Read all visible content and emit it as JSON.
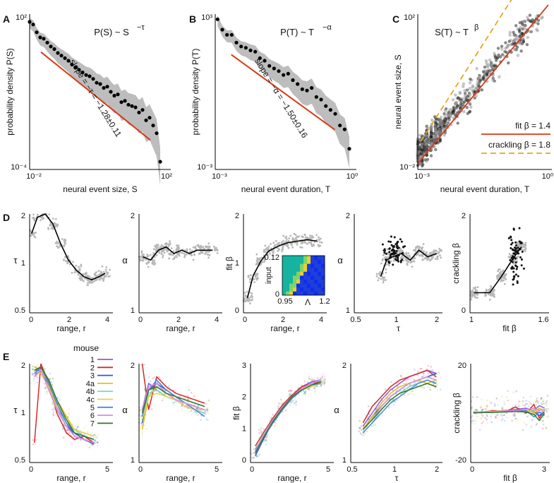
{
  "panel_letters": [
    "A",
    "B",
    "C",
    "D",
    "E"
  ],
  "legend": {
    "title": "mouse",
    "entries": [
      {
        "label": "1",
        "color": "#8b5cd6"
      },
      {
        "label": "2",
        "color": "#d62828"
      },
      {
        "label": "3",
        "color": "#3358c9"
      },
      {
        "label": "4a",
        "color": "#e0c21f"
      },
      {
        "label": "4b",
        "color": "#7ad7d0"
      },
      {
        "label": "4c",
        "color": "#e6d04a"
      },
      {
        "label": "5",
        "color": "#4a8ad6"
      },
      {
        "label": "6",
        "color": "#e08ae0"
      },
      {
        "label": "7",
        "color": "#2d7a2d"
      }
    ]
  },
  "chart_data": [
    {
      "panel": "A",
      "type": "scatter",
      "title": "P(S) ~ S",
      "title_exponent": "−τ",
      "xlabel": "neural event size, S",
      "ylabel": "probability density P(S)",
      "xticks": [
        "10⁻²",
        "10²"
      ],
      "yticks": [
        "10²",
        "10⁻⁴"
      ],
      "xlim_log10": [
        -2,
        2
      ],
      "ylim_log10": [
        -4,
        2
      ],
      "fit_annotation": "slope = −τ = −1.28±0.11",
      "x_log10": [
        -2.0,
        -1.9,
        -1.8,
        -1.7,
        -1.6,
        -1.5,
        -1.4,
        -1.3,
        -1.2,
        -1.1,
        -1.0,
        -0.9,
        -0.8,
        -0.7,
        -0.6,
        -0.5,
        -0.4,
        -0.3,
        -0.2,
        -0.1,
        0.0,
        0.1,
        0.2,
        0.3,
        0.4,
        0.5,
        0.6,
        0.7,
        0.8,
        0.9,
        1.0,
        1.1,
        1.2,
        1.3,
        1.4,
        1.5,
        1.6,
        1.7
      ],
      "y_log10": [
        1.7,
        1.6,
        1.3,
        1.1,
        1.05,
        0.9,
        0.75,
        0.65,
        0.5,
        0.4,
        0.3,
        0.2,
        0.05,
        -0.05,
        -0.15,
        -0.25,
        -0.35,
        -0.4,
        -0.5,
        -0.65,
        -0.7,
        -0.85,
        -0.8,
        -1.0,
        -1.15,
        -1.1,
        -1.4,
        -1.35,
        -1.5,
        -1.55,
        -1.6,
        -1.8,
        -1.7,
        -2.1,
        -2.0,
        -2.3,
        -2.6,
        -3.7
      ]
    },
    {
      "panel": "B",
      "type": "scatter",
      "title": "P(T) ~ T",
      "title_exponent": "−α",
      "xlabel": "neural event duration, T",
      "ylabel": "probability density P(T)",
      "xticks": [
        "10⁻³",
        "10⁰"
      ],
      "yticks": [
        "10³",
        "10⁻³"
      ],
      "xlim_log10": [
        -3,
        0
      ],
      "ylim_log10": [
        -3,
        3
      ],
      "fit_annotation": "slope = −α = −1.50±0.16",
      "x_log10": [
        -2.95,
        -2.85,
        -2.75,
        -2.65,
        -2.55,
        -2.45,
        -2.35,
        -2.25,
        -2.15,
        -2.05,
        -1.95,
        -1.85,
        -1.75,
        -1.65,
        -1.55,
        -1.45,
        -1.35,
        -1.25,
        -1.15,
        -1.05,
        -0.95,
        -0.85,
        -0.75,
        -0.65,
        -0.55,
        -0.45,
        -0.35,
        -0.25,
        -0.15
      ],
      "y_log10": [
        2.8,
        2.4,
        2.2,
        2.2,
        1.9,
        1.75,
        1.7,
        1.6,
        1.55,
        1.3,
        1.2,
        1.0,
        0.9,
        0.8,
        0.65,
        0.7,
        0.45,
        0.3,
        0.1,
        0.05,
        0.15,
        -0.2,
        -0.3,
        -0.55,
        -0.7,
        -0.85,
        -1.3,
        -1.45,
        -2.2
      ]
    },
    {
      "panel": "C",
      "type": "scatter",
      "title": "S(T) ~ T",
      "title_exponent": "β",
      "xlabel": "neural event duration, T",
      "ylabel": "neural event size, S",
      "xticks": [
        "10⁻³",
        "10⁰"
      ],
      "yticks": [
        "10²",
        "10⁻²"
      ],
      "xlim_log10": [
        -3,
        0
      ],
      "ylim_log10": [
        -2,
        2
      ],
      "lines": [
        {
          "name": "fit β = 1.4",
          "slope": 1.4,
          "color": "#d83a16",
          "dash": false
        },
        {
          "name": "crackling β = 1.8",
          "slope": 1.8,
          "color": "#e8a51c",
          "dash": true
        }
      ]
    },
    {
      "panel": "D1",
      "type": "line",
      "ylabel": "τ",
      "xlabel": "range, r",
      "xticks": [
        "0",
        "2",
        "4"
      ],
      "yticks": [
        "2",
        "1",
        "0.5"
      ],
      "xlim": [
        0,
        4.3
      ],
      "ylim": [
        0.5,
        2
      ],
      "x": [
        0.1,
        0.4,
        0.8,
        1.2,
        1.6,
        2.0,
        2.4,
        2.8,
        3.2,
        3.6,
        3.9
      ],
      "y": [
        1.7,
        1.95,
        2.0,
        1.85,
        1.55,
        1.3,
        1.15,
        1.05,
        1.0,
        1.05,
        1.1
      ]
    },
    {
      "panel": "D2",
      "type": "line",
      "ylabel": "α",
      "xlabel": "range, r",
      "xticks": [
        "0",
        "2",
        "4"
      ],
      "yticks": [
        "2",
        "1"
      ],
      "xlim": [
        0,
        4.3
      ],
      "ylim": [
        0.5,
        2
      ],
      "x": [
        0.2,
        0.6,
        1.0,
        1.4,
        1.8,
        2.2,
        2.6,
        3.0,
        3.4,
        3.8
      ],
      "y": [
        1.35,
        1.3,
        1.45,
        1.5,
        1.4,
        1.45,
        1.4,
        1.45,
        1.45,
        1.45
      ]
    },
    {
      "panel": "D3",
      "type": "line",
      "ylabel": "fit β",
      "xlabel": "range, r",
      "xticks": [
        "0",
        "2",
        "4"
      ],
      "yticks": [
        "2",
        "1",
        "0"
      ],
      "xlim": [
        0,
        4.3
      ],
      "ylim": [
        0,
        2
      ],
      "x": [
        0.2,
        0.5,
        0.9,
        1.3,
        1.8,
        2.3,
        2.8,
        3.3,
        3.8
      ],
      "y": [
        0.3,
        0.75,
        1.05,
        1.25,
        1.35,
        1.42,
        1.45,
        1.48,
        1.45
      ],
      "inset": {
        "ylabel": "input",
        "xlabel": "Λ",
        "xticks": [
          "0.95",
          "1.2"
        ],
        "yticks": [
          "0.12",
          "0"
        ]
      }
    },
    {
      "panel": "D4",
      "type": "line",
      "ylabel": "α",
      "xlabel": "τ",
      "xticks": [
        "0.5",
        "1",
        "2"
      ],
      "yticks": [
        "2",
        "1"
      ],
      "xlim": [
        0.5,
        2
      ],
      "ylim": [
        0.5,
        2
      ],
      "x": [
        0.95,
        1.05,
        1.15,
        1.3,
        1.45,
        1.6,
        1.75,
        1.9
      ],
      "y": [
        1.05,
        1.3,
        1.35,
        1.4,
        1.3,
        1.45,
        1.35,
        1.4
      ]
    },
    {
      "panel": "D5",
      "type": "line",
      "ylabel": "crackling β",
      "xlabel": "fit β",
      "xticks": [
        "1",
        "1.6"
      ],
      "yticks": [
        "2",
        "0"
      ],
      "xlim": [
        0.8,
        1.8
      ],
      "ylim": [
        -0.2,
        2.5
      ],
      "x": [
        0.85,
        1.05,
        1.2,
        1.35,
        1.45
      ],
      "y": [
        0.35,
        0.35,
        0.8,
        1.3,
        1.6
      ]
    },
    {
      "panel": "E1",
      "type": "line",
      "ylabel": "τ",
      "xlabel": "range, r",
      "xticks": [
        "0",
        "5"
      ],
      "yticks": [
        "2",
        "1",
        "0.5"
      ],
      "xlim": [
        0,
        5.2
      ],
      "ylim": [
        0.5,
        2
      ],
      "x": [
        0.3,
        0.7,
        1.2,
        1.7,
        2.3,
        2.8,
        3.4,
        4.0
      ],
      "series": [
        {
          "name": "1",
          "values": [
            1.8,
            1.95,
            1.75,
            1.35,
            1.1,
            0.9,
            0.85,
            0.8
          ]
        },
        {
          "name": "2",
          "values": [
            0.8,
            2.0,
            1.7,
            1.25,
            0.95,
            0.85,
            0.9,
            0.8
          ]
        },
        {
          "name": "3",
          "values": [
            1.9,
            1.9,
            1.65,
            1.3,
            1.05,
            0.95,
            0.85,
            0.78
          ]
        },
        {
          "name": "4a",
          "values": [
            1.95,
            1.9,
            1.7,
            1.45,
            1.2,
            1.0,
            0.9,
            0.85
          ]
        },
        {
          "name": "4b",
          "values": [
            1.85,
            1.9,
            1.6,
            1.3,
            1.1,
            1.0,
            0.9,
            0.85
          ]
        },
        {
          "name": "4c",
          "values": [
            1.9,
            1.85,
            1.65,
            1.35,
            1.15,
            1.0,
            0.95,
            0.9
          ]
        },
        {
          "name": "5",
          "values": [
            1.85,
            1.95,
            1.7,
            1.4,
            1.1,
            0.95,
            0.9,
            0.85
          ]
        },
        {
          "name": "6",
          "values": [
            1.8,
            1.9,
            1.6,
            1.3,
            1.05,
            0.9,
            0.85,
            0.8
          ]
        },
        {
          "name": "7",
          "values": [
            1.9,
            1.95,
            1.75,
            1.45,
            1.15,
            0.95,
            0.9,
            0.85
          ]
        }
      ]
    },
    {
      "panel": "E2",
      "type": "line",
      "ylabel": "α",
      "xlabel": "range, r",
      "xticks": [
        "0",
        "5"
      ],
      "yticks": [
        "2",
        "1"
      ],
      "xlim": [
        0,
        5.2
      ],
      "ylim": [
        0.5,
        2
      ],
      "x": [
        0.2,
        0.6,
        1.1,
        1.7,
        2.3,
        2.9,
        3.5,
        4.1
      ],
      "series": [
        {
          "name": "1",
          "values": [
            1.3,
            1.7,
            1.6,
            1.5,
            1.45,
            1.35,
            1.3,
            1.25
          ]
        },
        {
          "name": "2",
          "values": [
            2.0,
            1.3,
            1.8,
            1.65,
            1.55,
            1.5,
            1.45,
            1.4
          ]
        },
        {
          "name": "3",
          "values": [
            1.1,
            1.6,
            1.7,
            1.6,
            1.5,
            1.4,
            1.35,
            1.3
          ]
        },
        {
          "name": "4a",
          "values": [
            1.0,
            1.5,
            1.65,
            1.55,
            1.45,
            1.4,
            1.35,
            1.3
          ]
        },
        {
          "name": "4b",
          "values": [
            1.2,
            1.55,
            1.6,
            1.5,
            1.45,
            1.4,
            1.3,
            1.25
          ]
        },
        {
          "name": "4c",
          "values": [
            1.15,
            1.5,
            1.55,
            1.5,
            1.45,
            1.35,
            1.3,
            1.3
          ]
        },
        {
          "name": "5",
          "values": [
            1.2,
            1.6,
            1.75,
            1.6,
            1.5,
            1.4,
            1.3,
            1.2
          ]
        },
        {
          "name": "6",
          "values": [
            1.3,
            1.65,
            1.7,
            1.55,
            1.45,
            1.4,
            1.35,
            1.3
          ]
        },
        {
          "name": "7",
          "values": [
            1.25,
            1.6,
            1.65,
            1.55,
            1.5,
            1.45,
            1.4,
            1.35
          ]
        }
      ]
    },
    {
      "panel": "E3",
      "type": "line",
      "ylabel": "fit β",
      "xlabel": "range, r",
      "xticks": [
        "0",
        "5"
      ],
      "yticks": [
        "3",
        "2",
        "1",
        "0"
      ],
      "xlim": [
        0,
        5.2
      ],
      "ylim": [
        0,
        3
      ],
      "x": [
        0.3,
        0.8,
        1.4,
        2.0,
        2.6,
        3.2,
        3.8,
        4.4
      ],
      "series": [
        {
          "name": "1",
          "values": [
            0.4,
            0.8,
            1.3,
            1.7,
            2.0,
            2.3,
            2.45,
            2.5
          ]
        },
        {
          "name": "2",
          "values": [
            0.5,
            0.9,
            1.35,
            1.75,
            2.05,
            2.3,
            2.4,
            2.45
          ]
        },
        {
          "name": "3",
          "values": [
            0.2,
            0.7,
            1.25,
            1.7,
            2.0,
            2.2,
            2.35,
            2.45
          ]
        },
        {
          "name": "4a",
          "values": [
            0.3,
            0.8,
            1.3,
            1.7,
            2.0,
            2.25,
            2.4,
            2.5
          ]
        },
        {
          "name": "4b",
          "values": [
            0.35,
            0.85,
            1.3,
            1.65,
            1.95,
            2.2,
            2.35,
            2.4
          ]
        },
        {
          "name": "4c",
          "values": [
            0.3,
            0.8,
            1.25,
            1.65,
            1.95,
            2.2,
            2.3,
            2.4
          ]
        },
        {
          "name": "5",
          "values": [
            0.25,
            0.75,
            1.2,
            1.6,
            1.95,
            2.2,
            2.35,
            2.4
          ]
        },
        {
          "name": "6",
          "values": [
            0.35,
            0.8,
            1.3,
            1.7,
            2.0,
            2.25,
            2.4,
            2.5
          ]
        },
        {
          "name": "7",
          "values": [
            0.3,
            0.75,
            1.25,
            1.65,
            2.0,
            2.2,
            2.35,
            2.45
          ]
        }
      ]
    },
    {
      "panel": "E4",
      "type": "line",
      "ylabel": "α",
      "xlabel": "τ",
      "xticks": [
        "0.5",
        "1",
        "2"
      ],
      "yticks": [
        "2",
        "1"
      ],
      "xlim": [
        0.5,
        2
      ],
      "ylim": [
        0.5,
        2
      ],
      "x": [
        0.7,
        0.85,
        1.0,
        1.15,
        1.3,
        1.45,
        1.6,
        1.75,
        1.9
      ],
      "series": [
        {
          "name": "1",
          "values": [
            1.05,
            1.25,
            1.45,
            1.6,
            1.7,
            1.8,
            1.85,
            1.9,
            1.85
          ]
        },
        {
          "name": "2",
          "values": [
            1.1,
            1.35,
            1.5,
            1.65,
            1.75,
            1.8,
            1.85,
            1.9,
            1.8
          ]
        },
        {
          "name": "3",
          "values": [
            1.0,
            1.2,
            1.35,
            1.5,
            1.6,
            1.7,
            1.75,
            1.8,
            1.85
          ]
        },
        {
          "name": "4a",
          "values": [
            1.0,
            1.2,
            1.4,
            1.55,
            1.65,
            1.7,
            1.75,
            1.7,
            1.75
          ]
        },
        {
          "name": "4b",
          "values": [
            0.95,
            1.1,
            1.3,
            1.45,
            1.55,
            1.65,
            1.7,
            1.75,
            1.7
          ]
        },
        {
          "name": "4c",
          "values": [
            1.0,
            1.15,
            1.3,
            1.45,
            1.55,
            1.6,
            1.65,
            1.7,
            1.65
          ]
        },
        {
          "name": "5",
          "values": [
            0.95,
            1.1,
            1.25,
            1.4,
            1.5,
            1.6,
            1.7,
            1.75,
            1.7
          ]
        },
        {
          "name": "6",
          "values": [
            1.0,
            1.15,
            1.35,
            1.5,
            1.6,
            1.7,
            1.75,
            1.8,
            1.75
          ]
        },
        {
          "name": "7",
          "values": [
            1.0,
            1.15,
            1.3,
            1.45,
            1.55,
            1.6,
            1.65,
            1.7,
            1.65
          ]
        }
      ]
    },
    {
      "panel": "E5",
      "type": "line",
      "ylabel": "crackling β",
      "xlabel": "fit β",
      "xticks": [
        "0",
        "3"
      ],
      "yticks": [
        "20",
        "-20"
      ],
      "xlim": [
        0,
        3
      ],
      "ylim": [
        -20,
        20
      ],
      "x": [
        0.1,
        0.5,
        0.9,
        1.3,
        1.7,
        2.1,
        2.4,
        2.6,
        2.8
      ],
      "series": [
        {
          "name": "1",
          "values": [
            0.5,
            0.3,
            0.8,
            1.0,
            1.5,
            2.0,
            1.0,
            3.0,
            2.0
          ]
        },
        {
          "name": "2",
          "values": [
            0.0,
            0.5,
            1.0,
            0.5,
            2.5,
            0.0,
            3.5,
            -2.0,
            1.0
          ]
        },
        {
          "name": "3",
          "values": [
            0.3,
            0.2,
            0.4,
            0.6,
            1.0,
            0.8,
            0.5,
            -1.0,
            0.5
          ]
        },
        {
          "name": "4a",
          "values": [
            0.2,
            0.5,
            0.7,
            1.0,
            0.8,
            1.2,
            0.2,
            2.0,
            0.5
          ]
        },
        {
          "name": "4b",
          "values": [
            0.4,
            0.3,
            0.5,
            0.8,
            1.2,
            0.5,
            1.5,
            0.0,
            1.0
          ]
        },
        {
          "name": "4c",
          "values": [
            0.3,
            0.4,
            0.6,
            0.7,
            1.0,
            1.3,
            0.8,
            1.5,
            0.8
          ]
        },
        {
          "name": "5",
          "values": [
            0.2,
            0.3,
            0.5,
            0.5,
            0.8,
            1.0,
            -1.5,
            0.5,
            -1.0
          ]
        },
        {
          "name": "6",
          "values": [
            0.5,
            0.4,
            0.6,
            0.9,
            1.1,
            1.5,
            2.0,
            1.0,
            1.5
          ]
        },
        {
          "name": "7",
          "values": [
            0.1,
            0.2,
            0.3,
            0.5,
            0.7,
            0.4,
            -0.5,
            -3.0,
            0.0
          ]
        }
      ]
    }
  ]
}
